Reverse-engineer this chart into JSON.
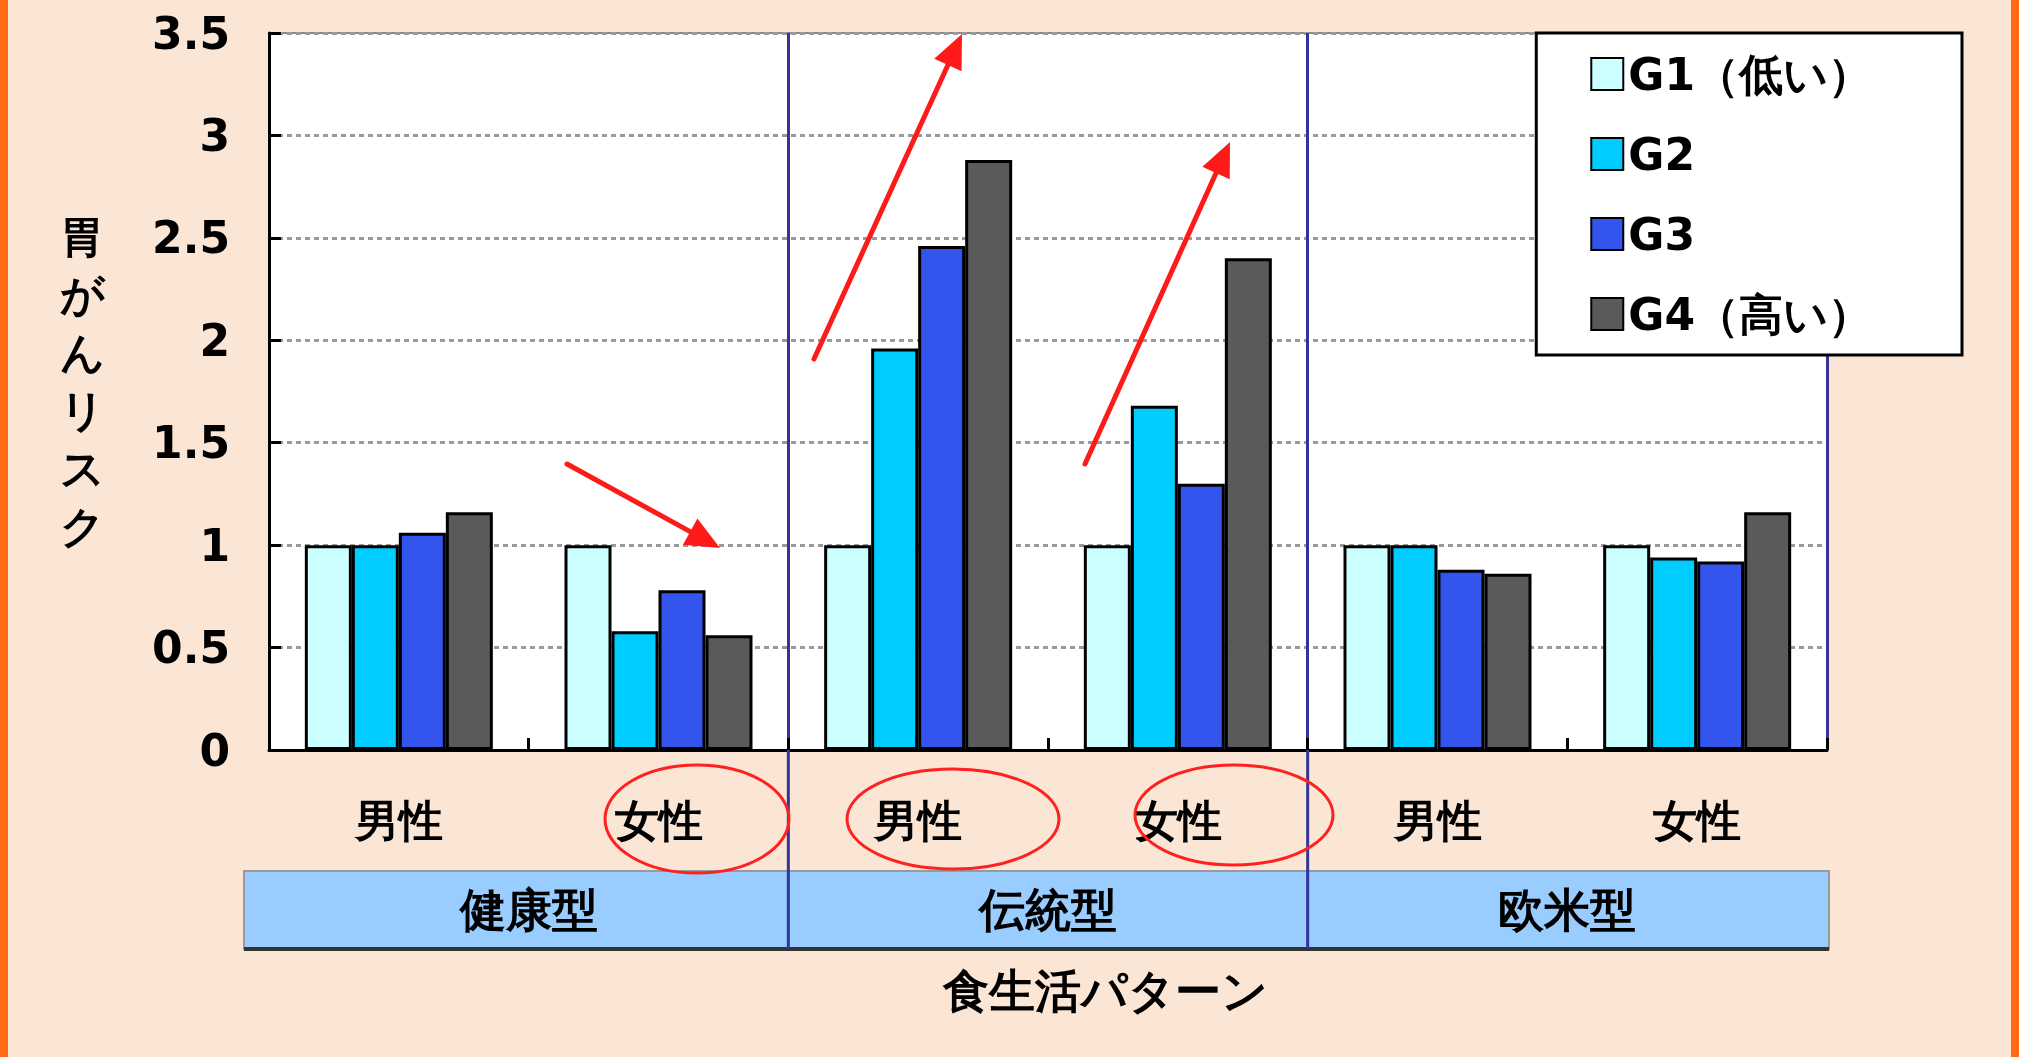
{
  "chart_data": {
    "type": "bar",
    "xlabel": "食生活パターン",
    "ylabel": "胃がんリスク",
    "categories": [
      "男性",
      "女性",
      "男性",
      "女性",
      "男性",
      "女性"
    ],
    "series": [
      {
        "name": "G1（低い）",
        "color": "#ccffff",
        "values": [
          1,
          1,
          1,
          1,
          1,
          1
        ]
      },
      {
        "name": "G2",
        "color": "#00ccff",
        "values": [
          1,
          0.58,
          1.96,
          1.68,
          1,
          0.94
        ]
      },
      {
        "name": "G3",
        "color": "#3355ee",
        "values": [
          1.06,
          0.78,
          2.46,
          1.3,
          0.88,
          0.92
        ]
      },
      {
        "name": "G4（高い）",
        "color": "#5a5a5a",
        "values": [
          1.16,
          0.56,
          2.88,
          2.4,
          0.86,
          1.16
        ]
      }
    ],
    "ylim": [
      0,
      3.5
    ],
    "yticks": [
      0,
      0.5,
      1,
      1.5,
      2,
      2.5,
      3,
      3.5
    ],
    "grid": "y",
    "legend": "top right",
    "annotations": [
      "健康型",
      "伝統型",
      "欧米型"
    ]
  }
}
